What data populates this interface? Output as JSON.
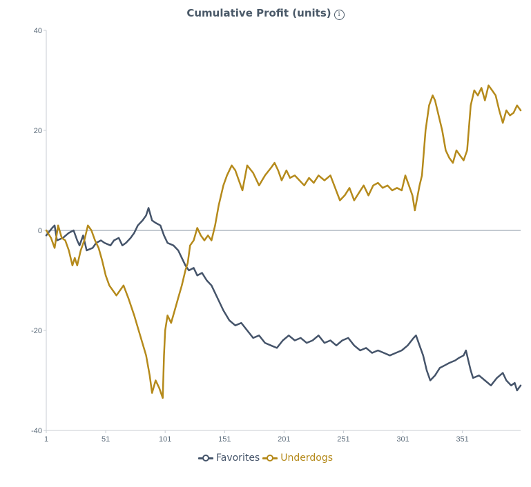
{
  "chart_data": {
    "type": "line",
    "title": "Cumulative Profit (units)",
    "xlabel": "",
    "ylabel": "",
    "xlim": [
      1,
      400
    ],
    "ylim": [
      -40,
      40
    ],
    "x_ticks": [
      1,
      51,
      101,
      151,
      201,
      251,
      301,
      351
    ],
    "y_ticks": [
      40,
      20,
      0,
      -20,
      -40
    ],
    "baseline": 0,
    "legend_position": "bottom-center",
    "series": [
      {
        "name": "Favorites",
        "color": "#45546a",
        "points": [
          [
            1,
            -1
          ],
          [
            6,
            0.5
          ],
          [
            8,
            1
          ],
          [
            10,
            -2
          ],
          [
            15,
            -1.5
          ],
          [
            20,
            -0.5
          ],
          [
            24,
            0
          ],
          [
            27,
            -2
          ],
          [
            29,
            -3
          ],
          [
            32,
            -1
          ],
          [
            35,
            -4
          ],
          [
            40,
            -3.5
          ],
          [
            43,
            -2.5
          ],
          [
            47,
            -2
          ],
          [
            50,
            -2.5
          ],
          [
            55,
            -3
          ],
          [
            58,
            -2
          ],
          [
            62,
            -1.5
          ],
          [
            65,
            -3
          ],
          [
            68,
            -2.5
          ],
          [
            72,
            -1.5
          ],
          [
            75,
            -0.5
          ],
          [
            78,
            1
          ],
          [
            82,
            2
          ],
          [
            85,
            3
          ],
          [
            87,
            4.5
          ],
          [
            90,
            2
          ],
          [
            93,
            1.5
          ],
          [
            97,
            1
          ],
          [
            100,
            -1
          ],
          [
            103,
            -2.5
          ],
          [
            108,
            -3
          ],
          [
            112,
            -4
          ],
          [
            115,
            -5.5
          ],
          [
            118,
            -7
          ],
          [
            121,
            -8
          ],
          [
            125,
            -7.5
          ],
          [
            128,
            -9
          ],
          [
            132,
            -8.5
          ],
          [
            136,
            -10
          ],
          [
            140,
            -11
          ],
          [
            145,
            -13.5
          ],
          [
            150,
            -16
          ],
          [
            155,
            -18
          ],
          [
            160,
            -19
          ],
          [
            165,
            -18.5
          ],
          [
            170,
            -20
          ],
          [
            175,
            -21.5
          ],
          [
            180,
            -21
          ],
          [
            185,
            -22.5
          ],
          [
            190,
            -23
          ],
          [
            195,
            -23.5
          ],
          [
            200,
            -22
          ],
          [
            205,
            -21
          ],
          [
            210,
            -22
          ],
          [
            215,
            -21.5
          ],
          [
            220,
            -22.5
          ],
          [
            225,
            -22
          ],
          [
            230,
            -21
          ],
          [
            235,
            -22.5
          ],
          [
            240,
            -22
          ],
          [
            245,
            -23
          ],
          [
            250,
            -22
          ],
          [
            255,
            -21.5
          ],
          [
            260,
            -23
          ],
          [
            265,
            -24
          ],
          [
            270,
            -23.5
          ],
          [
            275,
            -24.5
          ],
          [
            280,
            -24
          ],
          [
            285,
            -24.5
          ],
          [
            290,
            -25
          ],
          [
            295,
            -24.5
          ],
          [
            300,
            -24
          ],
          [
            305,
            -23
          ],
          [
            310,
            -21.5
          ],
          [
            312,
            -21
          ],
          [
            315,
            -23
          ],
          [
            318,
            -25
          ],
          [
            321,
            -28
          ],
          [
            324,
            -30
          ],
          [
            328,
            -29
          ],
          [
            332,
            -27.5
          ],
          [
            336,
            -27
          ],
          [
            340,
            -26.5
          ],
          [
            345,
            -26
          ],
          [
            348,
            -25.5
          ],
          [
            352,
            -25
          ],
          [
            354,
            -24
          ],
          [
            356,
            -26
          ],
          [
            358,
            -28
          ],
          [
            360,
            -29.5
          ],
          [
            365,
            -29
          ],
          [
            370,
            -30
          ],
          [
            375,
            -31
          ],
          [
            380,
            -29.5
          ],
          [
            385,
            -28.5
          ],
          [
            388,
            -30
          ],
          [
            392,
            -31
          ],
          [
            395,
            -30.5
          ],
          [
            397,
            -32
          ],
          [
            400,
            -31
          ]
        ]
      },
      {
        "name": "Underdogs",
        "color": "#b58a1b",
        "points": [
          [
            1,
            0
          ],
          [
            5,
            -1.5
          ],
          [
            8,
            -3.5
          ],
          [
            11,
            1
          ],
          [
            14,
            -1.5
          ],
          [
            17,
            -2
          ],
          [
            20,
            -4
          ],
          [
            23,
            -7
          ],
          [
            25,
            -5.5
          ],
          [
            27,
            -7
          ],
          [
            30,
            -4
          ],
          [
            33,
            -2
          ],
          [
            36,
            1
          ],
          [
            39,
            0
          ],
          [
            42,
            -2
          ],
          [
            45,
            -3.5
          ],
          [
            48,
            -6
          ],
          [
            51,
            -9
          ],
          [
            54,
            -11
          ],
          [
            57,
            -12
          ],
          [
            60,
            -13
          ],
          [
            63,
            -12
          ],
          [
            66,
            -11
          ],
          [
            70,
            -13.5
          ],
          [
            75,
            -17
          ],
          [
            80,
            -21
          ],
          [
            85,
            -25
          ],
          [
            88,
            -29
          ],
          [
            90,
            -32.5
          ],
          [
            93,
            -30
          ],
          [
            96,
            -31.5
          ],
          [
            99,
            -33.5
          ],
          [
            100,
            -25
          ],
          [
            101,
            -20
          ],
          [
            103,
            -17
          ],
          [
            106,
            -18.5
          ],
          [
            109,
            -16
          ],
          [
            112,
            -13.5
          ],
          [
            115,
            -11
          ],
          [
            118,
            -8
          ],
          [
            120,
            -6.5
          ],
          [
            122,
            -3
          ],
          [
            125,
            -2
          ],
          [
            128,
            0.5
          ],
          [
            131,
            -1
          ],
          [
            134,
            -2
          ],
          [
            137,
            -1
          ],
          [
            140,
            -2
          ],
          [
            143,
            1
          ],
          [
            146,
            5
          ],
          [
            150,
            9
          ],
          [
            153,
            11
          ],
          [
            157,
            13
          ],
          [
            160,
            12
          ],
          [
            163,
            10
          ],
          [
            166,
            8
          ],
          [
            170,
            13
          ],
          [
            175,
            11.5
          ],
          [
            180,
            9
          ],
          [
            185,
            11
          ],
          [
            190,
            12.5
          ],
          [
            193,
            13.5
          ],
          [
            196,
            12
          ],
          [
            199,
            10
          ],
          [
            203,
            12
          ],
          [
            206,
            10.5
          ],
          [
            210,
            11
          ],
          [
            214,
            10
          ],
          [
            218,
            9
          ],
          [
            222,
            10.5
          ],
          [
            226,
            9.5
          ],
          [
            230,
            11
          ],
          [
            235,
            10
          ],
          [
            240,
            11
          ],
          [
            244,
            8.5
          ],
          [
            248,
            6
          ],
          [
            252,
            7
          ],
          [
            256,
            8.5
          ],
          [
            260,
            6
          ],
          [
            264,
            7.5
          ],
          [
            268,
            9
          ],
          [
            272,
            7
          ],
          [
            276,
            9
          ],
          [
            280,
            9.5
          ],
          [
            284,
            8.5
          ],
          [
            288,
            9
          ],
          [
            292,
            8
          ],
          [
            296,
            8.5
          ],
          [
            300,
            8
          ],
          [
            303,
            11
          ],
          [
            306,
            9
          ],
          [
            309,
            7
          ],
          [
            311,
            4
          ],
          [
            313,
            6.5
          ],
          [
            315,
            9
          ],
          [
            317,
            11
          ],
          [
            320,
            20
          ],
          [
            323,
            25
          ],
          [
            326,
            27
          ],
          [
            328,
            26
          ],
          [
            331,
            23
          ],
          [
            334,
            20
          ],
          [
            337,
            16
          ],
          [
            340,
            14.5
          ],
          [
            343,
            13.5
          ],
          [
            346,
            16
          ],
          [
            349,
            15
          ],
          [
            352,
            14
          ],
          [
            355,
            16
          ],
          [
            358,
            25
          ],
          [
            361,
            28
          ],
          [
            364,
            27
          ],
          [
            367,
            28.5
          ],
          [
            370,
            26
          ],
          [
            373,
            29
          ],
          [
            376,
            28
          ],
          [
            379,
            27
          ],
          [
            382,
            24
          ],
          [
            385,
            21.5
          ],
          [
            388,
            24
          ],
          [
            391,
            23
          ],
          [
            394,
            23.5
          ],
          [
            397,
            25
          ],
          [
            400,
            24
          ]
        ]
      }
    ]
  }
}
